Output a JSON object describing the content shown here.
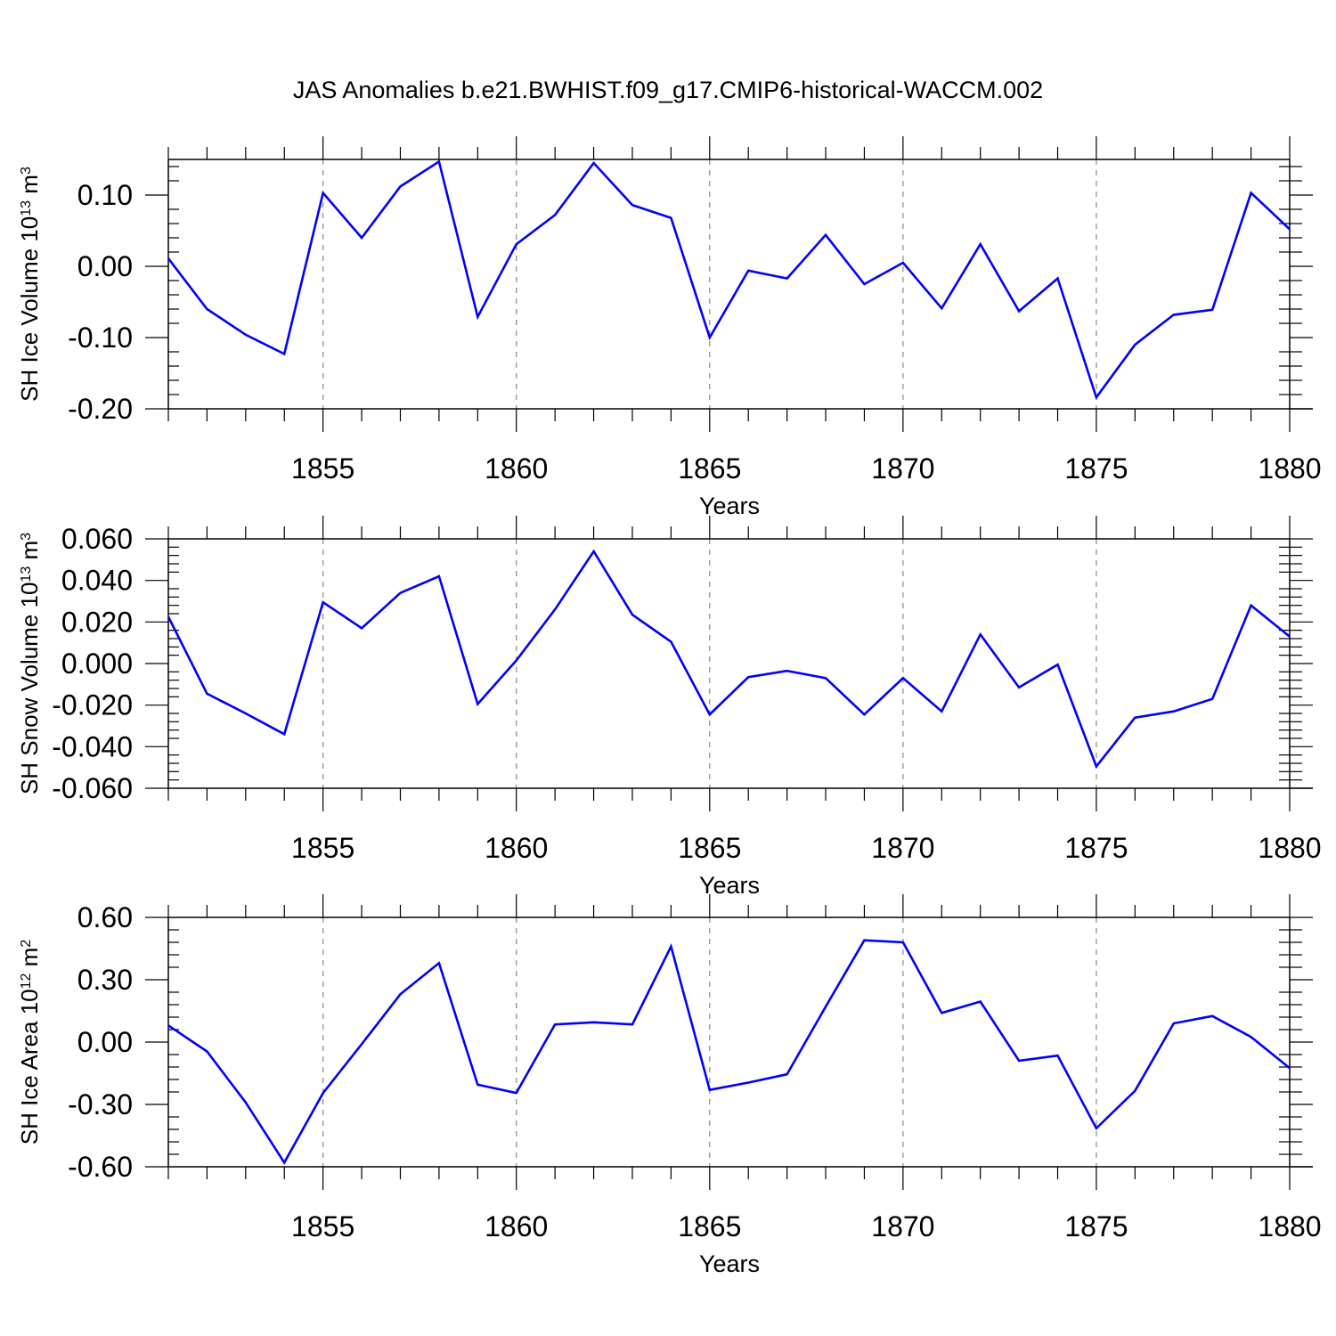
{
  "title": "JAS Anomalies b.e21.BWHIST.f09_g17.CMIP6-historical-WACCM.002",
  "chart_data": [
    {
      "type": "line",
      "xlabel": "Years",
      "ylabel": {
        "prefix": "SH Ice Volume 10",
        "exponent": "13",
        "middle": " m",
        "unit_exponent": "3"
      },
      "xlim": [
        1851,
        1880
      ],
      "ylim": [
        -0.2,
        0.15
      ],
      "yticks": [
        -0.2,
        -0.1,
        0.0,
        0.1
      ],
      "ytick_labels": [
        "-0.20",
        "-0.10",
        "0.00",
        "0.10"
      ],
      "xticks": [
        1855,
        1860,
        1865,
        1870,
        1875,
        1880
      ],
      "xtick_labels": [
        "1855",
        "1860",
        "1865",
        "1870",
        "1875",
        "1880"
      ],
      "grid": "vertical dashed at major x ticks",
      "color": "#0000ff",
      "x": [
        1851,
        1852,
        1853,
        1854,
        1855,
        1856,
        1857,
        1858,
        1859,
        1860,
        1861,
        1862,
        1863,
        1864,
        1865,
        1866,
        1867,
        1868,
        1869,
        1870,
        1871,
        1872,
        1873,
        1874,
        1875,
        1876,
        1877,
        1878,
        1879,
        1880
      ],
      "values": [
        0.011,
        -0.06,
        -0.096,
        -0.123,
        0.103,
        0.04,
        0.112,
        0.147,
        -0.071,
        0.031,
        0.072,
        0.145,
        0.086,
        0.068,
        -0.1,
        -0.006,
        -0.017,
        0.044,
        -0.025,
        0.005,
        -0.059,
        0.031,
        -0.063,
        -0.017,
        -0.184,
        -0.11,
        -0.068,
        -0.061,
        0.103,
        0.052
      ]
    },
    {
      "type": "line",
      "xlabel": "Years",
      "ylabel": {
        "prefix": "SH Snow Volume 10",
        "exponent": "13",
        "middle": " m",
        "unit_exponent": "3"
      },
      "xlim": [
        1851,
        1880
      ],
      "ylim": [
        -0.06,
        0.06
      ],
      "yticks": [
        -0.06,
        -0.04,
        -0.02,
        0.0,
        0.02,
        0.04,
        0.06
      ],
      "ytick_labels": [
        "-0.060",
        "-0.040",
        "-0.020",
        "0.000",
        "0.020",
        "0.040",
        "0.060"
      ],
      "xticks": [
        1855,
        1860,
        1865,
        1870,
        1875,
        1880
      ],
      "xtick_labels": [
        "1855",
        "1860",
        "1865",
        "1870",
        "1875",
        "1880"
      ],
      "grid": "vertical dashed at major x ticks",
      "color": "#0000ff",
      "x": [
        1851,
        1852,
        1853,
        1854,
        1855,
        1856,
        1857,
        1858,
        1859,
        1860,
        1861,
        1862,
        1863,
        1864,
        1865,
        1866,
        1867,
        1868,
        1869,
        1870,
        1871,
        1872,
        1873,
        1874,
        1875,
        1876,
        1877,
        1878,
        1879,
        1880
      ],
      "values": [
        0.0225,
        -0.0145,
        -0.024,
        -0.034,
        0.0295,
        0.017,
        0.034,
        0.042,
        -0.0195,
        0.0015,
        0.026,
        0.054,
        0.0235,
        0.0105,
        -0.0245,
        -0.0065,
        -0.0035,
        -0.007,
        -0.0245,
        -0.007,
        -0.023,
        0.014,
        -0.0115,
        -0.0005,
        -0.0495,
        -0.026,
        -0.023,
        -0.017,
        0.028,
        0.013
      ]
    },
    {
      "type": "line",
      "xlabel": "Years",
      "ylabel": {
        "prefix": "SH Ice Area 10",
        "exponent": "12",
        "middle": " m",
        "unit_exponent": "2"
      },
      "xlim": [
        1851,
        1880
      ],
      "ylim": [
        -0.6,
        0.6
      ],
      "yticks": [
        -0.6,
        -0.3,
        0.0,
        0.3,
        0.6
      ],
      "ytick_labels": [
        "-0.60",
        "-0.30",
        "0.00",
        "0.30",
        "0.60"
      ],
      "xticks": [
        1855,
        1860,
        1865,
        1870,
        1875,
        1880
      ],
      "xtick_labels": [
        "1855",
        "1860",
        "1865",
        "1870",
        "1875",
        "1880"
      ],
      "grid": "vertical dashed at major x ticks",
      "color": "#0000ff",
      "x": [
        1851,
        1852,
        1853,
        1854,
        1855,
        1856,
        1857,
        1858,
        1859,
        1860,
        1861,
        1862,
        1863,
        1864,
        1865,
        1866,
        1867,
        1868,
        1869,
        1870,
        1871,
        1872,
        1873,
        1874,
        1875,
        1876,
        1877,
        1878,
        1879,
        1880
      ],
      "values": [
        0.08,
        -0.045,
        -0.29,
        -0.58,
        -0.245,
        -0.01,
        0.23,
        0.38,
        -0.205,
        -0.245,
        0.085,
        0.095,
        0.085,
        0.46,
        -0.23,
        -0.195,
        -0.155,
        0.17,
        0.49,
        0.48,
        0.14,
        0.195,
        -0.09,
        -0.065,
        -0.415,
        -0.235,
        0.09,
        0.125,
        0.025,
        -0.125
      ]
    }
  ]
}
